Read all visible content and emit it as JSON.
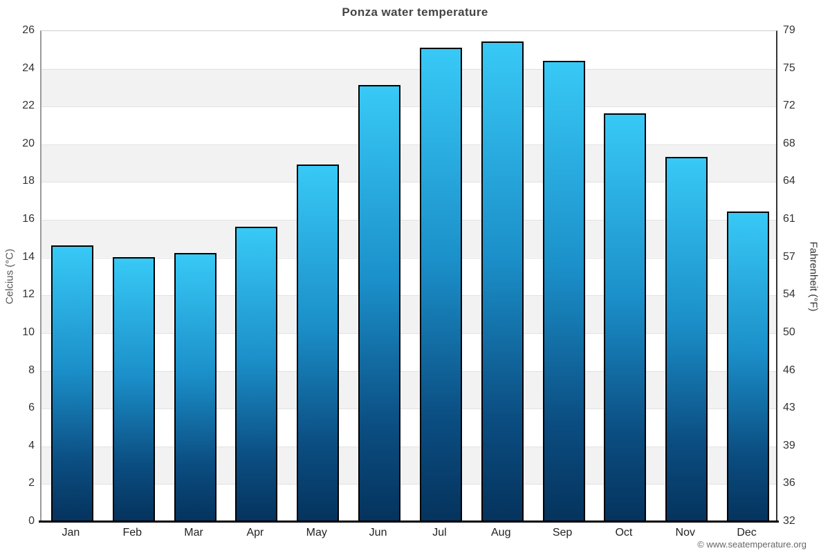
{
  "header": {
    "title": "Ponza water temperature"
  },
  "chart_data": {
    "type": "bar",
    "title": "Ponza water temperature",
    "categories": [
      "Jan",
      "Feb",
      "Mar",
      "Apr",
      "May",
      "Jun",
      "Jul",
      "Aug",
      "Sep",
      "Oct",
      "Nov",
      "Dec"
    ],
    "values": [
      14.6,
      14.0,
      14.2,
      15.6,
      18.9,
      23.1,
      25.1,
      25.4,
      24.4,
      21.6,
      19.3,
      16.4
    ],
    "unit": "°C",
    "xlabel": "",
    "ylabel_left": "Celcius (°C)",
    "ylabel_right": "Fahrenheit (°F)",
    "ylim": [
      0,
      26
    ],
    "y_left_ticks": [
      26,
      24,
      22,
      20,
      18,
      16,
      14,
      12,
      10,
      8,
      6,
      4,
      2,
      0
    ],
    "y_right_ticks": [
      79,
      75,
      72,
      68,
      64,
      61,
      57,
      54,
      50,
      46,
      43,
      39,
      36,
      32
    ],
    "grid": "horizontal gridlines every 2°C with alternating white/gray bands",
    "legend": "none",
    "colors": {
      "bar_gradient_top": "#38c9f6",
      "bar_gradient_bottom": "#05335d",
      "bar_border": "#000000",
      "band_gray": "#f2f2f2",
      "band_white": "#ffffff",
      "axis_baseline": "#000000",
      "title_text": "#444444",
      "tick_text": "#333333"
    }
  },
  "footer": {
    "copyright": "© www.seatemperature.org"
  }
}
